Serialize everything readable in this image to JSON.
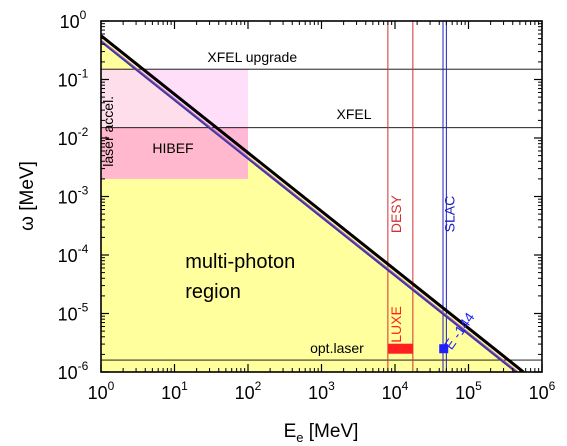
{
  "chart_data": {
    "type": "line",
    "xlabel": "E",
    "xlabel_sub": "e",
    "xlabel_unit": " [MeV]",
    "ylabel": "ω [MeV]",
    "xscale": "log",
    "yscale": "log",
    "xlim": [
      1,
      1000000
    ],
    "ylim": [
      1e-06,
      1
    ],
    "grid": false,
    "x_ticks": [
      {
        "base": "10",
        "exp": "0",
        "value": 1
      },
      {
        "base": "10",
        "exp": "1",
        "value": 10
      },
      {
        "base": "10",
        "exp": "2",
        "value": 100
      },
      {
        "base": "10",
        "exp": "3",
        "value": 1000
      },
      {
        "base": "10",
        "exp": "4",
        "value": 10000
      },
      {
        "base": "10",
        "exp": "5",
        "value": 100000
      },
      {
        "base": "10",
        "exp": "6",
        "value": 1000000
      }
    ],
    "y_ticks": [
      {
        "base": "10",
        "exp": "0",
        "value": 1
      },
      {
        "base": "10",
        "exp": "-1",
        "value": 0.1
      },
      {
        "base": "10",
        "exp": "-2",
        "value": 0.01
      },
      {
        "base": "10",
        "exp": "-3",
        "value": 0.001
      },
      {
        "base": "10",
        "exp": "-4",
        "value": 0.0001
      },
      {
        "base": "10",
        "exp": "-5",
        "value": 1e-05
      },
      {
        "base": "10",
        "exp": "-6",
        "value": 1e-06
      }
    ],
    "regions": [
      {
        "label": "multi-photon region",
        "label_lines": [
          "multi-photon",
          "region"
        ],
        "label_pos": [
          14,
          6e-05
        ],
        "color": "#ffff9e",
        "polygon": [
          [
            1,
            1e-06
          ],
          [
            1,
            0.56
          ],
          [
            560000,
            1e-06
          ]
        ]
      },
      {
        "label": "laser accel.",
        "color": "#ffd8f8",
        "opacity": 0.85,
        "rotated": true,
        "label_pos": [
          1.45,
          0.013
        ],
        "xrange": [
          1,
          100
        ],
        "yrange": [
          0.002,
          0.15
        ]
      },
      {
        "label": "HIBEF",
        "color": "#ff8aa8",
        "opacity": 0.45,
        "label_pos": [
          5,
          0.0055
        ],
        "xrange": [
          1,
          100
        ],
        "yrange": [
          0.002,
          0.015
        ]
      }
    ],
    "series": [
      {
        "color": "#000000",
        "x": [
          1,
          560000
        ],
        "y": [
          0.56,
          1e-06
        ],
        "width": 3
      },
      {
        "color": "#3a3aa0",
        "x": [
          1,
          560000
        ],
        "y": [
          0.45,
          8e-07
        ],
        "width": 2.5
      },
      {
        "color": "#c060c0",
        "x": [
          1,
          560000
        ],
        "y": [
          0.475,
          8.5e-07
        ],
        "width": 1
      }
    ],
    "horizontal_lines": [
      {
        "label": "XFEL upgrade",
        "y": 0.15,
        "label_x": 28,
        "label_y": 0.2,
        "color": "#000000"
      },
      {
        "label": "XFEL",
        "y": 0.015,
        "label_x": 1600,
        "label_y": 0.021,
        "color": "#000000"
      },
      {
        "label": "opt.laser",
        "y": 1.6e-06,
        "label_x": 700,
        "label_y": 2.1e-06,
        "color": "#000000"
      }
    ],
    "experiments": [
      {
        "label": "DESY",
        "color": "#d43030",
        "x_lines": [
          8000,
          17500
        ],
        "label_x": 12000,
        "label_y": 0.0005,
        "rotated": true
      },
      {
        "label": "SLAC",
        "color": "#2020c0",
        "x_lines": [
          45000,
          50000
        ],
        "label_x": 65000,
        "label_y": 0.0005,
        "rotated": true
      },
      {
        "label": "LUXE",
        "color": "#ff2020",
        "label_x": 12000,
        "label_y": 6.5e-06,
        "rotated": true,
        "marker": {
          "shape": "bar",
          "x": [
            8000,
            17500
          ],
          "y": 2.5e-06
        }
      },
      {
        "label": "E -144",
        "color": "#2020ff",
        "label_x": 85000,
        "label_y": 4.5e-06,
        "rotated": true,
        "rotation": -55,
        "marker": {
          "shape": "square",
          "x": 46000,
          "y": 2.5e-06
        }
      }
    ]
  }
}
